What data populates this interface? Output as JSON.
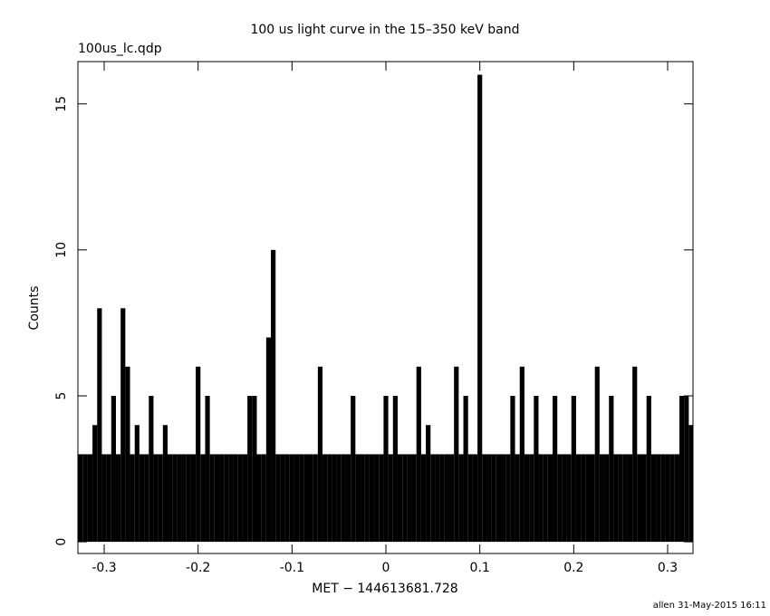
{
  "chart_data": {
    "type": "step",
    "title": "100 us light curve in the 15–350 keV band",
    "subtitle": "100us_lc.qdp",
    "x_label": "MET − 144613681.728",
    "y_label": "Counts",
    "footer": "allen 31-May-2015 16:11",
    "color": "#000000",
    "xlim": [
      -0.328,
      0.327
    ],
    "ylim": [
      -0.4,
      16.45
    ],
    "xticks": [
      -0.3,
      -0.2,
      -0.1,
      0,
      0.1,
      0.2,
      0.3
    ],
    "yticks": [
      0,
      5,
      10,
      15
    ],
    "x": [
      -0.325,
      -0.32,
      -0.315,
      -0.31,
      -0.305,
      -0.3,
      -0.295,
      -0.29,
      -0.285,
      -0.28,
      -0.275,
      -0.27,
      -0.265,
      -0.26,
      -0.255,
      -0.25,
      -0.245,
      -0.24,
      -0.235,
      -0.23,
      -0.225,
      -0.22,
      -0.215,
      -0.21,
      -0.205,
      -0.2,
      -0.195,
      -0.19,
      -0.185,
      -0.18,
      -0.175,
      -0.17,
      -0.165,
      -0.16,
      -0.155,
      -0.15,
      -0.145,
      -0.14,
      -0.135,
      -0.13,
      -0.125,
      -0.12,
      -0.115,
      -0.11,
      -0.105,
      -0.1,
      -0.095,
      -0.09,
      -0.085,
      -0.08,
      -0.075,
      -0.07,
      -0.065,
      -0.06,
      -0.055,
      -0.05,
      -0.045,
      -0.04,
      -0.035,
      -0.03,
      -0.025,
      -0.02,
      -0.015,
      -0.01,
      -0.005,
      0,
      0.005,
      0.01,
      0.015,
      0.02,
      0.025,
      0.03,
      0.035,
      0.04,
      0.045,
      0.05,
      0.055,
      0.06,
      0.065,
      0.07,
      0.075,
      0.08,
      0.085,
      0.09,
      0.095,
      0.1,
      0.105,
      0.11,
      0.115,
      0.12,
      0.125,
      0.13,
      0.135,
      0.14,
      0.145,
      0.15,
      0.155,
      0.16,
      0.165,
      0.17,
      0.175,
      0.18,
      0.185,
      0.19,
      0.195,
      0.2,
      0.205,
      0.21,
      0.215,
      0.22,
      0.225,
      0.23,
      0.235,
      0.24,
      0.245,
      0.25,
      0.255,
      0.26,
      0.265,
      0.27,
      0.275,
      0.28,
      0.285,
      0.29,
      0.295,
      0.3,
      0.305,
      0.31,
      0.315,
      0.32,
      0.325
    ],
    "values": [
      3,
      3,
      3,
      4,
      8,
      3,
      3,
      5,
      3,
      8,
      6,
      3,
      4,
      3,
      3,
      5,
      3,
      3,
      4,
      3,
      3,
      3,
      3,
      3,
      3,
      6,
      3,
      5,
      3,
      3,
      3,
      3,
      3,
      3,
      3,
      3,
      5,
      5,
      3,
      3,
      7,
      10,
      3,
      3,
      3,
      3,
      3,
      3,
      3,
      3,
      3,
      6,
      3,
      3,
      3,
      3,
      3,
      3,
      5,
      3,
      3,
      3,
      3,
      3,
      3,
      5,
      3,
      5,
      3,
      3,
      3,
      3,
      6,
      3,
      4,
      3,
      3,
      3,
      3,
      3,
      6,
      3,
      5,
      3,
      3,
      16,
      3,
      3,
      3,
      3,
      3,
      3,
      5,
      3,
      6,
      3,
      3,
      5,
      3,
      3,
      3,
      5,
      3,
      3,
      3,
      5,
      3,
      3,
      3,
      3,
      6,
      3,
      3,
      5,
      3,
      3,
      3,
      3,
      6,
      3,
      3,
      5,
      3,
      3,
      3,
      3,
      3,
      3,
      5,
      5,
      4
    ]
  }
}
